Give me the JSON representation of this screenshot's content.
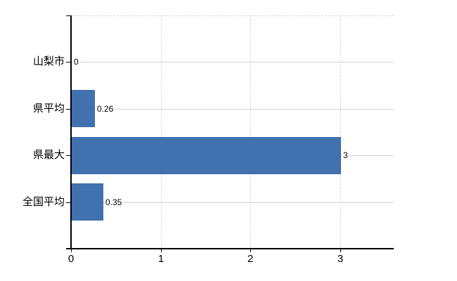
{
  "chart_data": {
    "type": "bar",
    "orientation": "horizontal",
    "title": "",
    "xlabel": "",
    "ylabel": "",
    "categories": [
      "山梨市",
      "県平均",
      "県最大",
      "全国平均"
    ],
    "values": [
      0,
      0.26,
      3,
      0.35
    ],
    "value_labels": [
      "0",
      "0.26",
      "3",
      "0.35"
    ],
    "x_ticks": [
      0,
      1,
      2,
      3
    ],
    "x_tick_labels": [
      "0",
      "1",
      "2",
      "3"
    ],
    "xlim": [
      0,
      3.6
    ],
    "grid": true,
    "legend_position": "none",
    "bar_color": "#4171ae",
    "h_gridline_color": "#ccd5cc",
    "v_gridline_color": "#d8d8d8",
    "axis_color": "#000000",
    "text_color": "#000000",
    "background_color": "#ffffff"
  }
}
